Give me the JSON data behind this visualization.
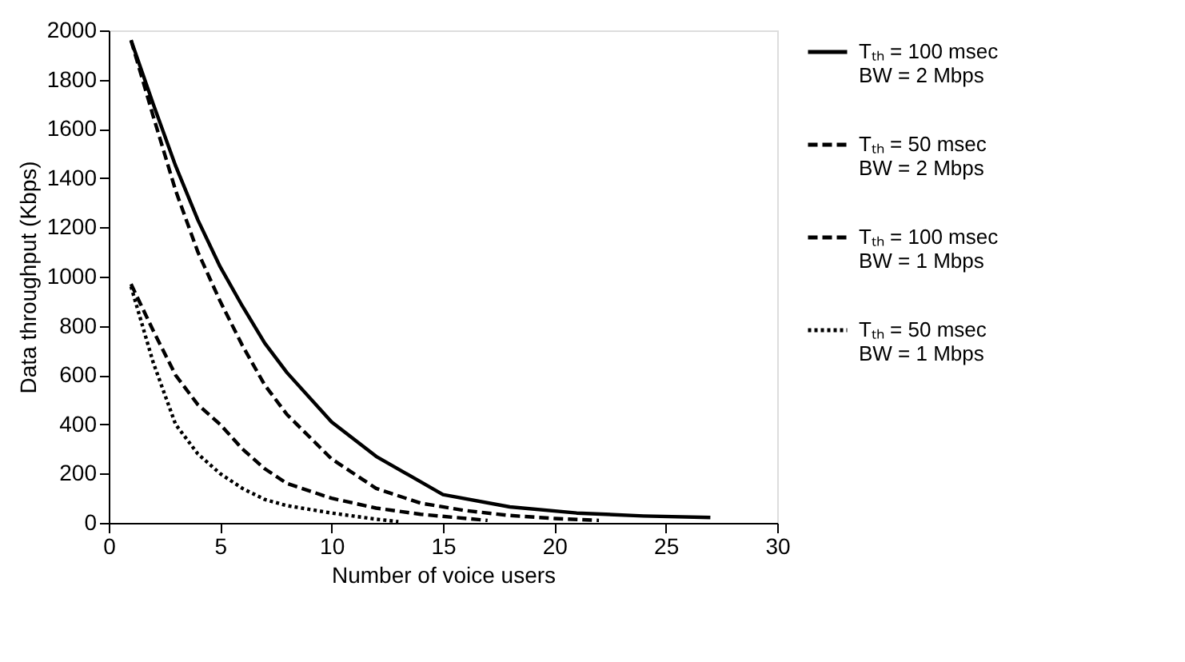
{
  "chart_data": {
    "type": "line",
    "xlabel": "Number of voice users",
    "ylabel": "Data throughput (Kbps)",
    "xlim": [
      0,
      30
    ],
    "xticks": [
      0,
      5,
      10,
      15,
      20,
      25,
      30
    ],
    "ylim": [
      0,
      2000
    ],
    "yticks": [
      0,
      200,
      400,
      600,
      800,
      1000,
      1200,
      1400,
      1600,
      1800,
      2000
    ],
    "grid": false,
    "legend": "right",
    "marker": "none",
    "series": [
      {
        "name": "Tₜₕ = 100 msec\nBW = 2 Mbps",
        "color": "#000000",
        "line_style": "solid",
        "x": [
          1,
          2,
          3,
          4,
          5,
          6,
          7,
          8,
          10,
          12,
          15,
          18,
          21,
          24,
          27
        ],
        "values": [
          1960,
          1700,
          1450,
          1230,
          1040,
          880,
          730,
          610,
          410,
          270,
          115,
          65,
          40,
          28,
          22
        ]
      },
      {
        "name": "Tₜₕ = 50 msec\nBW = 2 Mbps",
        "color": "#000000",
        "line_style": "dashed",
        "x": [
          1,
          2,
          3,
          4,
          5,
          6,
          7,
          8,
          10,
          12,
          14,
          16,
          18,
          20,
          22
        ],
        "values": [
          1960,
          1650,
          1350,
          1100,
          900,
          720,
          560,
          440,
          260,
          140,
          80,
          50,
          30,
          18,
          10
        ]
      },
      {
        "name": "Tₜₕ = 100 msec\nBW = 1 Mbps",
        "color": "#000000",
        "line_style": "dashed",
        "x": [
          1,
          2,
          3,
          4,
          5,
          6,
          7,
          8,
          10,
          12,
          14,
          17
        ],
        "values": [
          970,
          780,
          600,
          480,
          400,
          300,
          220,
          160,
          100,
          60,
          35,
          10
        ]
      },
      {
        "name": "Tₜₕ = 50 msec\nBW = 1 Mbps",
        "color": "#000000",
        "line_style": "dotted",
        "x": [
          1,
          2,
          3,
          4,
          5,
          6,
          7,
          8,
          10,
          12,
          13
        ],
        "values": [
          960,
          650,
          400,
          280,
          200,
          140,
          95,
          70,
          40,
          15,
          5
        ]
      }
    ]
  }
}
